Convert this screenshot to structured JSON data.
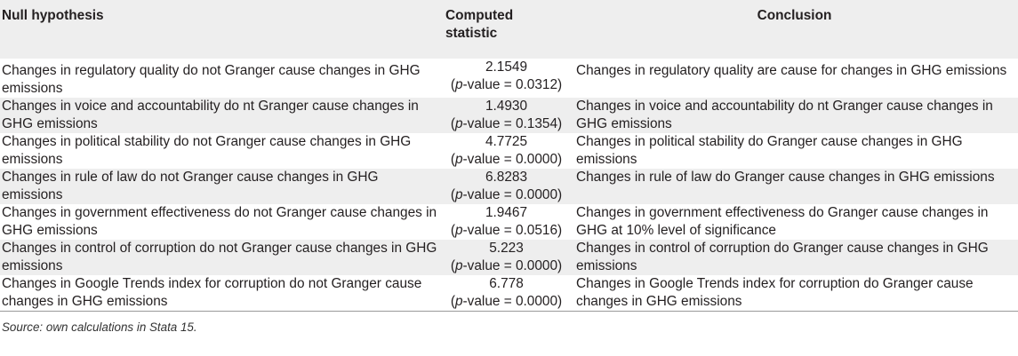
{
  "headers": {
    "null_hypothesis": "Null hypothesis",
    "computed_statistic_line1": "Computed",
    "computed_statistic_line2": "statistic",
    "conclusion": "Conclusion"
  },
  "p_label": "p",
  "rows": [
    {
      "hypothesis": "Changes in regulatory quality do not Granger cause changes in GHG emissions",
      "statistic": "2.1549",
      "p_value": "-value = 0.0312)",
      "conclusion": "Changes in regulatory quality are cause for changes in GHG emissions"
    },
    {
      "hypothesis": "Changes in voice and accountability do nt Granger cause changes in GHG emissions",
      "statistic": "1.4930",
      "p_value": "-value = 0.1354)",
      "conclusion": "Changes in voice and accountability do nt Granger cause changes in GHG emissions"
    },
    {
      "hypothesis": "Changes in political stability do not Granger cause changes in GHG emissions",
      "statistic": "4.7725",
      "p_value": "-value = 0.0000)",
      "conclusion": "Changes in political stability do Granger cause changes in GHG emissions"
    },
    {
      "hypothesis": "Changes in rule of law do not Granger cause changes in GHG emissions",
      "statistic": "6.8283",
      "p_value": "-value = 0.0000)",
      "conclusion": "Changes in rule of law do Granger cause changes in GHG emissions"
    },
    {
      "hypothesis": "Changes in government effectiveness do not Granger cause changes in GHG emissions",
      "statistic": "1.9467",
      "p_value": "-value = 0.0516)",
      "conclusion": "Changes in government effectiveness do Granger cause changes in GHG at 10% level of significance"
    },
    {
      "hypothesis": "Changes in control of corruption do not Granger cause changes in GHG emissions",
      "statistic": "5.223",
      "p_value": "-value = 0.0000)",
      "conclusion": "Changes in control of corruption do Granger cause changes in GHG emissions"
    },
    {
      "hypothesis": "Changes in Google Trends index for corruption do not Granger cause changes in GHG emissions",
      "statistic": "6.778",
      "p_value": "-value = 0.0000)",
      "conclusion": "Changes in Google Trends index for corruption do Granger cause changes in GHG emissions"
    }
  ],
  "source_note": "Source: own calculations in Stata 15."
}
